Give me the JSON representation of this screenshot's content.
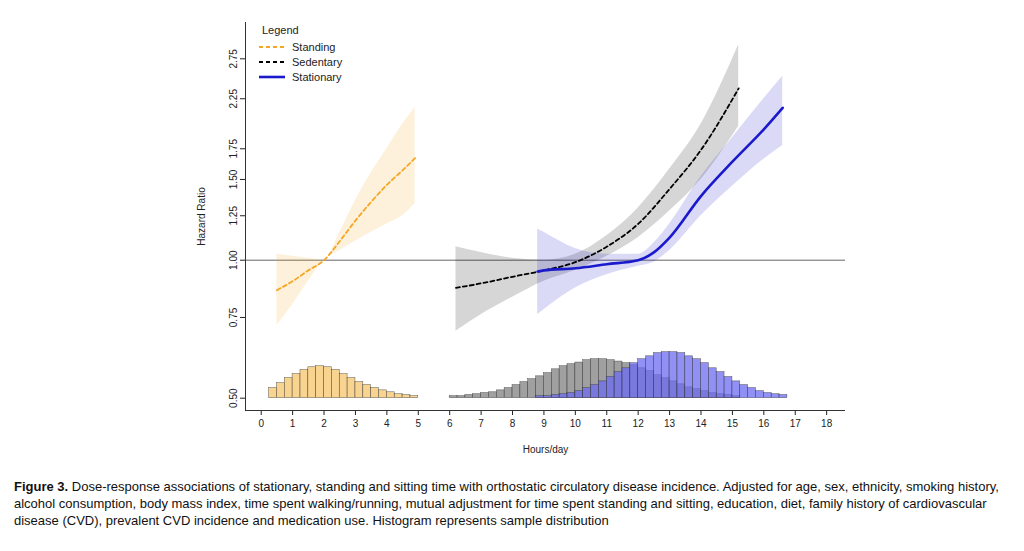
{
  "chart_data": {
    "type": "line",
    "xlabel": "Hours/day",
    "ylabel": "Hazard Ratio",
    "legend_title": "Legend",
    "legend": "top-left",
    "caption_label": "Figure 3.",
    "caption": "Dose-response associations of stationary, standing and sitting time with orthostatic circulatory disease incidence. Adjusted for age, sex, ethnicity, smoking history, alcohol consumption, body mass index, time spent walking/running, mutual adjustment for time spent standing and sitting, education, diet, family history of cardiovascular disease (CVD), prevalent CVD incidence and medication use. Histogram represents sample distribution",
    "log": "y",
    "xlim": [
      -0.5,
      18.6
    ],
    "ylim": [
      0.47,
      3.3
    ],
    "xticks": [
      0,
      1,
      2,
      3,
      4,
      5,
      6,
      7,
      8,
      9,
      10,
      11,
      12,
      13,
      14,
      15,
      16,
      17,
      18
    ],
    "yticks": [
      {
        "value": 0.5,
        "label": "0.50"
      },
      {
        "value": 0.75,
        "label": "0.75"
      },
      {
        "value": 1,
        "label": "1.00"
      },
      {
        "value": 1.25,
        "label": "1.25"
      },
      {
        "value": 1.5,
        "label": "1.50"
      },
      {
        "value": 1.75,
        "label": "1.75"
      },
      {
        "value": 2.25,
        "label": "2.25"
      },
      {
        "value": 2.75,
        "label": "2.75"
      }
    ],
    "reference_line": 1,
    "series": [
      {
        "type": "histogram",
        "color": "#808080",
        "base": 0.5,
        "bins": [
          6,
          6.25,
          6.5,
          6.75,
          7,
          7.25,
          7.5,
          7.75,
          8,
          8.25,
          8.5,
          8.75,
          9,
          9.25,
          9.5,
          9.75,
          10,
          10.25,
          10.5,
          10.75,
          11,
          11.25,
          11.5,
          11.75,
          12,
          12.25,
          12.5,
          12.75,
          13,
          13.25,
          13.5,
          13.75,
          14,
          14.25,
          14.5,
          14.75,
          15,
          15.25
        ],
        "values": [
          0.505,
          0.505,
          0.508,
          0.51,
          0.513,
          0.515,
          0.52,
          0.526,
          0.534,
          0.542,
          0.55,
          0.558,
          0.567,
          0.578,
          0.587,
          0.593,
          0.598,
          0.605,
          0.608,
          0.608,
          0.605,
          0.601,
          0.596,
          0.59,
          0.581,
          0.573,
          0.561,
          0.553,
          0.544,
          0.536,
          0.528,
          0.523,
          0.518,
          0.513,
          0.51,
          0.508,
          0.505
        ]
      },
      {
        "type": "histogram",
        "color": "#6b6bf2",
        "base": 0.5,
        "bins": [
          8.75,
          9,
          9.25,
          9.5,
          9.75,
          10,
          10.25,
          10.5,
          10.75,
          11,
          11.25,
          11.5,
          11.75,
          12,
          12.25,
          12.5,
          12.75,
          13,
          13.25,
          13.5,
          13.75,
          14,
          14.25,
          14.5,
          14.75,
          15,
          15.25,
          15.5,
          15.75,
          16,
          16.25,
          16.5,
          16.75
        ],
        "values": [
          0.505,
          0.505,
          0.508,
          0.51,
          0.513,
          0.518,
          0.526,
          0.534,
          0.544,
          0.556,
          0.57,
          0.581,
          0.596,
          0.608,
          0.617,
          0.627,
          0.63,
          0.63,
          0.627,
          0.617,
          0.608,
          0.596,
          0.581,
          0.57,
          0.556,
          0.544,
          0.534,
          0.526,
          0.518,
          0.513,
          0.51,
          0.508
        ]
      },
      {
        "type": "histogram",
        "color": "#f7c56b",
        "base": 0.5,
        "bins": [
          0.25,
          0.5,
          0.75,
          1,
          1.25,
          1.5,
          1.75,
          2,
          2.25,
          2.5,
          2.75,
          3,
          3.25,
          3.5,
          3.75,
          4,
          4.25,
          4.5,
          4.75,
          5
        ],
        "values": [
          0.526,
          0.539,
          0.553,
          0.564,
          0.576,
          0.584,
          0.587,
          0.584,
          0.576,
          0.564,
          0.553,
          0.542,
          0.534,
          0.526,
          0.52,
          0.515,
          0.51,
          0.508,
          0.505
        ]
      },
      {
        "type": "line",
        "name": "Standing",
        "color": "#f5a623",
        "line_style": "dashed",
        "x": [
          0.5,
          1,
          1.5,
          2,
          2.5,
          3,
          3.5,
          4,
          4.5,
          4.9
        ],
        "values": [
          0.86,
          0.9,
          0.95,
          1.0,
          1.1,
          1.22,
          1.34,
          1.46,
          1.57,
          1.67
        ],
        "lower": [
          0.72,
          0.8,
          0.9,
          1.0,
          1.05,
          1.1,
          1.15,
          1.2,
          1.25,
          1.33
        ],
        "upper": [
          1.03,
          1.02,
          1.01,
          1.0,
          1.15,
          1.35,
          1.55,
          1.75,
          1.98,
          2.15
        ]
      },
      {
        "type": "line",
        "name": "Sedentary",
        "color": "#000000",
        "line_style": "dashed",
        "x": [
          6.2,
          7,
          8,
          9,
          10,
          11,
          12,
          13,
          14,
          15.2
        ],
        "values": [
          0.87,
          0.89,
          0.92,
          0.95,
          0.99,
          1.07,
          1.2,
          1.43,
          1.74,
          2.37
        ],
        "lower": [
          0.7,
          0.76,
          0.83,
          0.9,
          0.95,
          1.02,
          1.12,
          1.28,
          1.5,
          1.96
        ],
        "upper": [
          1.07,
          1.04,
          1.01,
          1.0,
          1.03,
          1.13,
          1.3,
          1.58,
          1.98,
          2.95
        ]
      },
      {
        "type": "line",
        "name": "Stationary",
        "color": "#1a1acc",
        "line_style": "solid",
        "x": [
          8.8,
          9,
          10,
          11,
          12,
          12.5,
          13,
          14,
          15,
          16,
          16.6
        ],
        "values": [
          0.945,
          0.95,
          0.96,
          0.98,
          1.0,
          1.04,
          1.12,
          1.38,
          1.64,
          1.93,
          2.15
        ],
        "lower": [
          0.76,
          0.78,
          0.87,
          0.93,
          0.97,
          0.99,
          1.05,
          1.25,
          1.45,
          1.66,
          1.78
        ],
        "upper": [
          1.17,
          1.15,
          1.06,
          1.03,
          1.03,
          1.09,
          1.2,
          1.52,
          1.85,
          2.25,
          2.52
        ]
      }
    ]
  }
}
